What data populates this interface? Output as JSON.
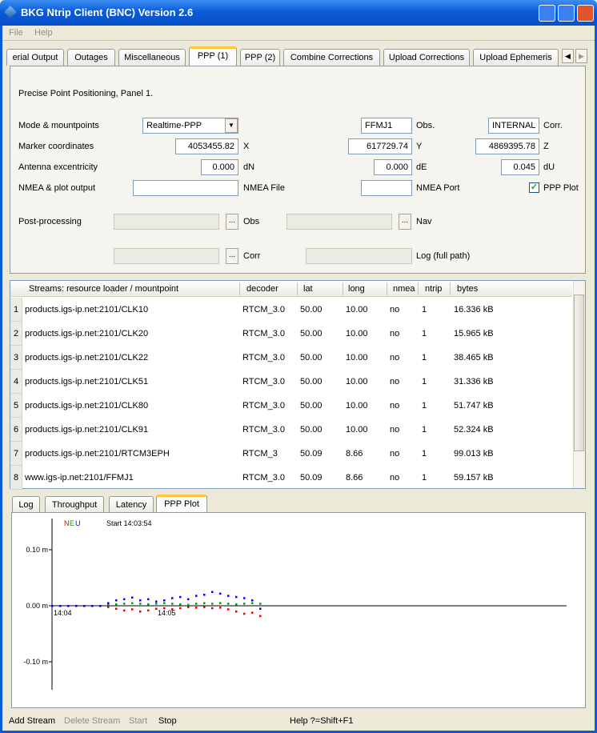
{
  "window": {
    "title": "BKG Ntrip Client (BNC) Version 2.6",
    "menu": [
      "File",
      "Help"
    ]
  },
  "tabs": {
    "items": [
      "erial Output",
      "Outages",
      "Miscellaneous",
      "PPP (1)",
      "PPP (2)",
      "Combine Corrections",
      "Upload Corrections",
      "Upload Ephemeris"
    ],
    "active": 3
  },
  "form": {
    "heading": "Precise Point Positioning, Panel 1.",
    "browse_button": "...",
    "mode_row": {
      "label": "Mode & mountpoints",
      "mode": "Realtime-PPP",
      "obs_mountpoint": "FFMJ1",
      "obs_label": "Obs.",
      "corr_mountpoint": "INTERNAL",
      "corr_label": "Corr."
    },
    "marker_row": {
      "label": "Marker coordinates",
      "x_value": "4053455.82",
      "x_label": "X",
      "y_value": "617729.74",
      "y_label": "Y",
      "z_value": "4869395.78",
      "z_label": "Z"
    },
    "antenna_row": {
      "label": "Antenna excentricity",
      "dn_value": "0.000",
      "dn_label": "dN",
      "de_value": "0.000",
      "de_label": "dE",
      "du_value": "0.045",
      "du_label": "dU"
    },
    "nmea_row": {
      "label": "NMEA & plot output",
      "nmea_file_label": "NMEA File",
      "nmea_port_label": "NMEA Port",
      "ppp_plot_checked": true,
      "ppp_plot_label": "PPP Plot"
    },
    "post_row": {
      "label": "Post-processing",
      "obs_label": "Obs",
      "nav_label": "Nav"
    },
    "corr_row": {
      "corr_label": "Corr",
      "log_label": "Log (full path)"
    }
  },
  "streams": {
    "headers": [
      "Streams:  resource loader / mountpoint",
      "decoder",
      "lat",
      "long",
      "nmea",
      "ntrip",
      "bytes"
    ],
    "row_numbers": [
      1,
      2,
      3,
      4,
      5,
      6,
      7,
      8
    ],
    "rows": [
      [
        "products.igs-ip.net:2101/CLK10",
        "RTCM_3.0",
        "50.00",
        "10.00",
        "no",
        "1",
        "16.336 kB"
      ],
      [
        "products.igs-ip.net:2101/CLK20",
        "RTCM_3.0",
        "50.00",
        "10.00",
        "no",
        "1",
        "15.965 kB"
      ],
      [
        "products.igs-ip.net:2101/CLK22",
        "RTCM_3.0",
        "50.00",
        "10.00",
        "no",
        "1",
        "38.465 kB"
      ],
      [
        "products.igs-ip.net:2101/CLK51",
        "RTCM_3.0",
        "50.00",
        "10.00",
        "no",
        "1",
        "31.336 kB"
      ],
      [
        "products.igs-ip.net:2101/CLK80",
        "RTCM_3.0",
        "50.00",
        "10.00",
        "no",
        "1",
        "51.747 kB"
      ],
      [
        "products.igs-ip.net:2101/CLK91",
        "RTCM_3.0",
        "50.00",
        "10.00",
        "no",
        "1",
        "52.324 kB"
      ],
      [
        "products.igs-ip.net:2101/RTCM3EPH",
        "RTCM_3",
        "50.09",
        "8.66",
        "no",
        "1",
        "99.013 kB"
      ],
      [
        "www.igs-ip.net:2101/FFMJ1",
        "RTCM_3.0",
        "50.09",
        "8.66",
        "no",
        "1",
        "59.157 kB"
      ]
    ]
  },
  "bottom_tabs": {
    "items": [
      "Log",
      "Throughput",
      "Latency",
      "PPP Plot"
    ],
    "active": 3
  },
  "ppp_plot": {
    "start_label": "Start 14:03:54",
    "ylim": [
      -0.15,
      0.15
    ],
    "yticks": [
      {
        "value": 0.1,
        "label": "0.10 m"
      },
      {
        "value": 0,
        "label": "0.00 m"
      },
      {
        "value": -0.1,
        "label": "-0.10 m"
      }
    ],
    "xtick_labels": [
      "14:04",
      "14:05"
    ],
    "series": [
      {
        "name": "N",
        "color": "#e00000",
        "values": [
          0,
          0,
          0,
          0,
          0,
          0,
          0,
          -0.002,
          -0.005,
          -0.008,
          -0.006,
          -0.01,
          -0.008,
          -0.005,
          -0.004,
          -0.006,
          -0.004,
          -0.002,
          -0.003,
          -0.002,
          -0.004,
          -0.003,
          -0.006,
          -0.01,
          -0.014,
          -0.012,
          -0.018
        ]
      },
      {
        "name": "E",
        "color": "#00a000",
        "values": [
          0,
          0,
          0,
          0,
          0,
          0,
          0,
          0.002,
          0.003,
          0.004,
          0.005,
          0.004,
          0.003,
          0.004,
          0.005,
          0.004,
          0.003,
          0.002,
          0.004,
          0.005,
          0.004,
          0.005,
          0.004,
          0.003,
          0.004,
          0.005,
          0.004
        ]
      },
      {
        "name": "U",
        "color": "#0000e0",
        "values": [
          0,
          0,
          0,
          0,
          0,
          0,
          0,
          0.005,
          0.01,
          0.012,
          0.015,
          0.01,
          0.012,
          0.008,
          0.01,
          0.014,
          0.016,
          0.012,
          0.018,
          0.02,
          0.025,
          0.022,
          0.018,
          0.016,
          0.014,
          0.01,
          -0.005
        ]
      }
    ]
  },
  "status_bar": {
    "buttons": [
      "Add Stream",
      "Delete Stream",
      "Start",
      "Stop"
    ],
    "help": "Help ?=Shift+F1"
  }
}
